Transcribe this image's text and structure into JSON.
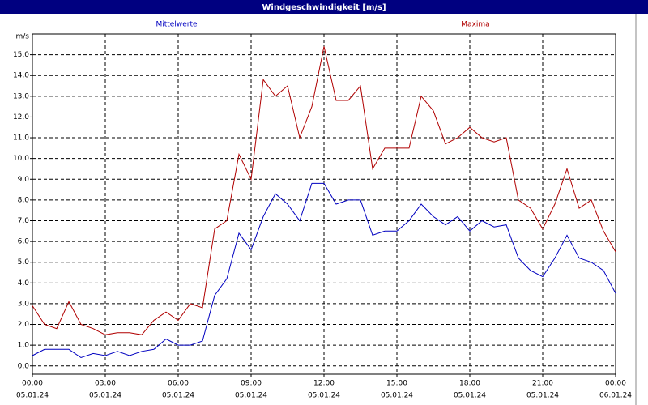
{
  "chart_data": {
    "type": "line",
    "title": "Windgeschwindigkeit [m/s]",
    "yunit": "m/s",
    "x": [
      0,
      0.5,
      1,
      1.5,
      2,
      2.5,
      3,
      3.5,
      4,
      4.5,
      5,
      5.5,
      6,
      6.5,
      7,
      7.5,
      8,
      8.5,
      9,
      9.5,
      10,
      10.5,
      11,
      11.5,
      12,
      12.5,
      13,
      13.5,
      14,
      14.5,
      15,
      15.5,
      16,
      16.5,
      17,
      17.5,
      18,
      18.5,
      19,
      19.5,
      20,
      20.5,
      21,
      21.5,
      22,
      22.5,
      23,
      23.5,
      24
    ],
    "series": [
      {
        "name": "Mittelwerte",
        "color": "#0000c0",
        "values": [
          0.5,
          0.8,
          0.8,
          0.8,
          0.4,
          0.6,
          0.5,
          0.7,
          0.5,
          0.7,
          0.8,
          1.3,
          1.0,
          1.0,
          1.2,
          3.4,
          4.2,
          6.4,
          5.6,
          7.2,
          8.3,
          7.8,
          7.0,
          8.8,
          8.8,
          7.8,
          8.0,
          8.0,
          6.3,
          6.5,
          6.5,
          7.0,
          7.8,
          7.2,
          6.8,
          7.2,
          6.5,
          7.0,
          6.7,
          6.8,
          5.2,
          4.6,
          4.3,
          5.2,
          6.3,
          5.2,
          5.0,
          4.6,
          3.5
        ]
      },
      {
        "name": "Maxima",
        "color": "#b00000",
        "values": [
          2.9,
          2.0,
          1.8,
          3.1,
          2.0,
          1.8,
          1.5,
          1.6,
          1.6,
          1.5,
          2.2,
          2.6,
          2.2,
          3.0,
          2.8,
          6.6,
          7.0,
          10.2,
          9.0,
          13.8,
          13.0,
          13.5,
          11.0,
          12.5,
          15.4,
          12.8,
          12.8,
          13.5,
          9.5,
          10.5,
          10.5,
          10.5,
          13.0,
          12.3,
          10.7,
          11.0,
          11.5,
          11.0,
          10.8,
          11.0,
          8.0,
          7.6,
          6.6,
          7.8,
          9.5,
          7.6,
          8.0,
          6.5,
          5.5
        ]
      }
    ],
    "xlim": [
      0,
      24
    ],
    "xticks": [
      {
        "value": 0,
        "label": "00:00"
      },
      {
        "value": 3,
        "label": "03:00"
      },
      {
        "value": 6,
        "label": "06:00"
      },
      {
        "value": 9,
        "label": "09:00"
      },
      {
        "value": 12,
        "label": "12:00"
      },
      {
        "value": 15,
        "label": "15:00"
      },
      {
        "value": 18,
        "label": "18:00"
      },
      {
        "value": 21,
        "label": "21:00"
      },
      {
        "value": 24,
        "label": "00:00"
      }
    ],
    "xtick_dates": [
      "05.01.24",
      "05.01.24",
      "05.01.24",
      "05.01.24",
      "05.01.24",
      "05.01.24",
      "05.01.24",
      "05.01.24",
      "06.01.24"
    ],
    "ylim": [
      -0.4,
      16.0
    ],
    "yticks": [
      {
        "value": 0,
        "label": "0,0"
      },
      {
        "value": 1,
        "label": "1,0"
      },
      {
        "value": 2,
        "label": "2,0"
      },
      {
        "value": 3,
        "label": "3,0"
      },
      {
        "value": 4,
        "label": "4,0"
      },
      {
        "value": 5,
        "label": "5,0"
      },
      {
        "value": 6,
        "label": "6,0"
      },
      {
        "value": 7,
        "label": "7,0"
      },
      {
        "value": 8,
        "label": "8,0"
      },
      {
        "value": 9,
        "label": "9,0"
      },
      {
        "value": 10,
        "label": "10,0"
      },
      {
        "value": 11,
        "label": "11,0"
      },
      {
        "value": 12,
        "label": "12,0"
      },
      {
        "value": 13,
        "label": "13,0"
      },
      {
        "value": 14,
        "label": "14,0"
      },
      {
        "value": 15,
        "label": "15,0"
      }
    ],
    "grid": true
  }
}
